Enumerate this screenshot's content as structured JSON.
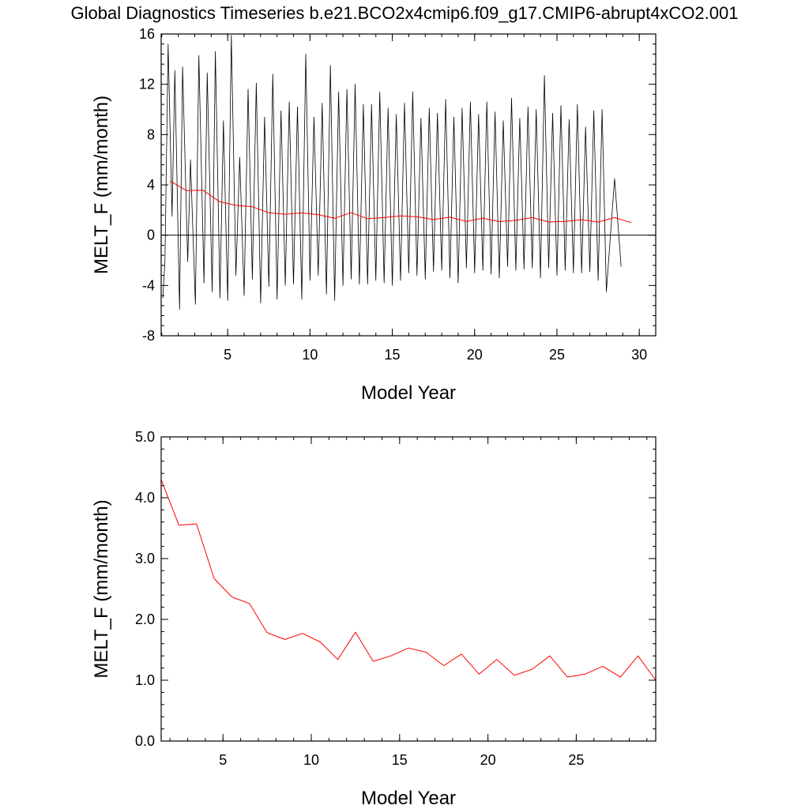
{
  "title": "Global Diagnostics Timeseries b.e21.BCO2x4cmip6.f09_g17.CMIP6-abrupt4xCO2.001",
  "colors": {
    "monthly": "#000000",
    "annual": "#ff0000",
    "zero_line": "#000000"
  },
  "chart_data": [
    {
      "type": "line",
      "xlabel": "Model Year",
      "ylabel": "MELT_F (mm/month)",
      "xlim": [
        0.96,
        31.0
      ],
      "ylim": [
        -8,
        16
      ],
      "xticks": [
        5,
        10,
        15,
        20,
        25,
        30
      ],
      "xtick_labels": [
        "5",
        "10",
        "15",
        "20",
        "25",
        "30"
      ],
      "yticks": [
        -8,
        -4,
        0,
        4,
        8,
        12,
        16
      ],
      "ytick_labels": [
        "-8",
        "-4",
        "0",
        "4",
        "8",
        "12",
        "16"
      ],
      "reference_line": 0,
      "series": [
        {
          "key": "monthly",
          "color": "#000000",
          "values": [
            -5.0,
            -2.0,
            15.2,
            1.5,
            13.1,
            -5.9,
            13.4,
            -2.1,
            6.0,
            -5.5,
            14.3,
            -3.8,
            12.9,
            -4.5,
            14.6,
            -5.0,
            9.1,
            -5.2,
            15.9,
            -3.2,
            6.2,
            -4.8,
            11.6,
            -3.5,
            12.1,
            -5.4,
            9.4,
            -4.1,
            12.8,
            -5.1,
            9.9,
            -4.0,
            10.6,
            -3.9,
            10.2,
            -5.1,
            14.4,
            -3.6,
            9.4,
            -3.2,
            10.5,
            -4.7,
            13.5,
            -5.2,
            11.4,
            -4.0,
            11.6,
            -3.5,
            12.0,
            -3.9,
            10.4,
            -3.9,
            10.4,
            -3.6,
            11.4,
            -3.8,
            10.1,
            -4.0,
            9.6,
            -3.6,
            10.5,
            -3.0,
            11.4,
            -3.2,
            9.3,
            -3.5,
            10.1,
            -2.9,
            9.7,
            -2.8,
            10.8,
            -3.4,
            9.4,
            -3.8,
            10.1,
            -2.6,
            10.6,
            -3.0,
            9.6,
            -2.8,
            10.6,
            -3.1,
            9.8,
            -3.4,
            9.1,
            -2.5,
            10.9,
            -2.8,
            9.3,
            -2.7,
            10.2,
            -2.6,
            10.0,
            -3.4,
            12.7,
            -2.6,
            9.7,
            -3.2,
            10.3,
            -2.8,
            9.2,
            -3.0,
            10.4,
            -3.0,
            8.6,
            -2.9,
            9.9,
            -3.6,
            10.0,
            -4.5,
            4.5,
            -2.5
          ],
          "x": [
            1.06,
            1.19,
            1.38,
            1.62,
            1.79,
            2.08,
            2.26,
            2.57,
            2.74,
            3.04,
            3.25,
            3.56,
            3.76,
            4.06,
            4.25,
            4.53,
            4.74,
            5.0,
            5.22,
            5.5,
            5.73,
            6.0,
            6.24,
            6.5,
            6.74,
            7.0,
            7.24,
            7.5,
            7.74,
            8.0,
            8.24,
            8.5,
            8.74,
            9.0,
            9.24,
            9.5,
            9.74,
            10.0,
            10.24,
            10.5,
            10.74,
            11.0,
            11.24,
            11.5,
            11.74,
            12.0,
            12.24,
            12.5,
            12.74,
            13.0,
            13.24,
            13.5,
            13.74,
            14.0,
            14.24,
            14.5,
            14.74,
            15.0,
            15.24,
            15.5,
            15.74,
            16.0,
            16.24,
            16.5,
            16.74,
            17.0,
            17.24,
            17.5,
            17.74,
            18.0,
            18.24,
            18.5,
            18.74,
            19.0,
            19.24,
            19.5,
            19.74,
            20.0,
            20.24,
            20.5,
            20.74,
            21.0,
            21.24,
            21.5,
            21.74,
            22.0,
            22.24,
            22.5,
            22.74,
            23.0,
            23.24,
            23.5,
            23.74,
            24.0,
            24.24,
            24.5,
            24.74,
            25.0,
            25.24,
            25.5,
            25.74,
            26.0,
            26.24,
            26.5,
            26.74,
            27.0,
            27.24,
            27.5,
            27.74,
            28.0,
            28.5,
            28.9
          ]
        },
        {
          "key": "annual",
          "color": "#ff0000",
          "x": [
            1.5,
            2.5,
            3.5,
            4.5,
            5.5,
            6.5,
            7.5,
            8.5,
            9.5,
            10.5,
            11.5,
            12.5,
            13.5,
            14.5,
            15.5,
            16.5,
            17.5,
            18.5,
            19.5,
            20.5,
            21.5,
            22.5,
            23.5,
            24.5,
            25.5,
            26.5,
            27.5,
            28.5,
            29.5
          ],
          "values": [
            4.3,
            3.55,
            3.57,
            2.67,
            2.37,
            2.26,
            1.78,
            1.67,
            1.77,
            1.63,
            1.34,
            1.79,
            1.31,
            1.4,
            1.53,
            1.46,
            1.24,
            1.43,
            1.1,
            1.34,
            1.08,
            1.18,
            1.4,
            1.05,
            1.1,
            1.23,
            1.05,
            1.4,
            1.0
          ]
        }
      ]
    },
    {
      "type": "line",
      "xlabel": "Model Year",
      "ylabel": "MELT_F (mm/month)",
      "xlim": [
        1.5,
        29.5
      ],
      "ylim": [
        0.0,
        5.0
      ],
      "xticks": [
        5,
        10,
        15,
        20,
        25
      ],
      "xtick_labels": [
        "5",
        "10",
        "15",
        "20",
        "25"
      ],
      "yticks": [
        0,
        1,
        2,
        3,
        4,
        5
      ],
      "ytick_labels": [
        "0.0",
        "1.0",
        "2.0",
        "3.0",
        "4.0",
        "5.0"
      ],
      "series": [
        {
          "key": "annual",
          "color": "#ff0000",
          "x": [
            1.5,
            2.5,
            3.5,
            4.5,
            5.5,
            6.5,
            7.5,
            8.5,
            9.5,
            10.5,
            11.5,
            12.5,
            13.5,
            14.5,
            15.5,
            16.5,
            17.5,
            18.5,
            19.5,
            20.5,
            21.5,
            22.5,
            23.5,
            24.5,
            25.5,
            26.5,
            27.5,
            28.5,
            29.5
          ],
          "values": [
            4.3,
            3.55,
            3.57,
            2.67,
            2.37,
            2.26,
            1.78,
            1.67,
            1.77,
            1.63,
            1.34,
            1.79,
            1.31,
            1.4,
            1.53,
            1.46,
            1.24,
            1.43,
            1.1,
            1.34,
            1.08,
            1.18,
            1.4,
            1.05,
            1.1,
            1.23,
            1.05,
            1.4,
            1.0
          ]
        }
      ]
    }
  ]
}
